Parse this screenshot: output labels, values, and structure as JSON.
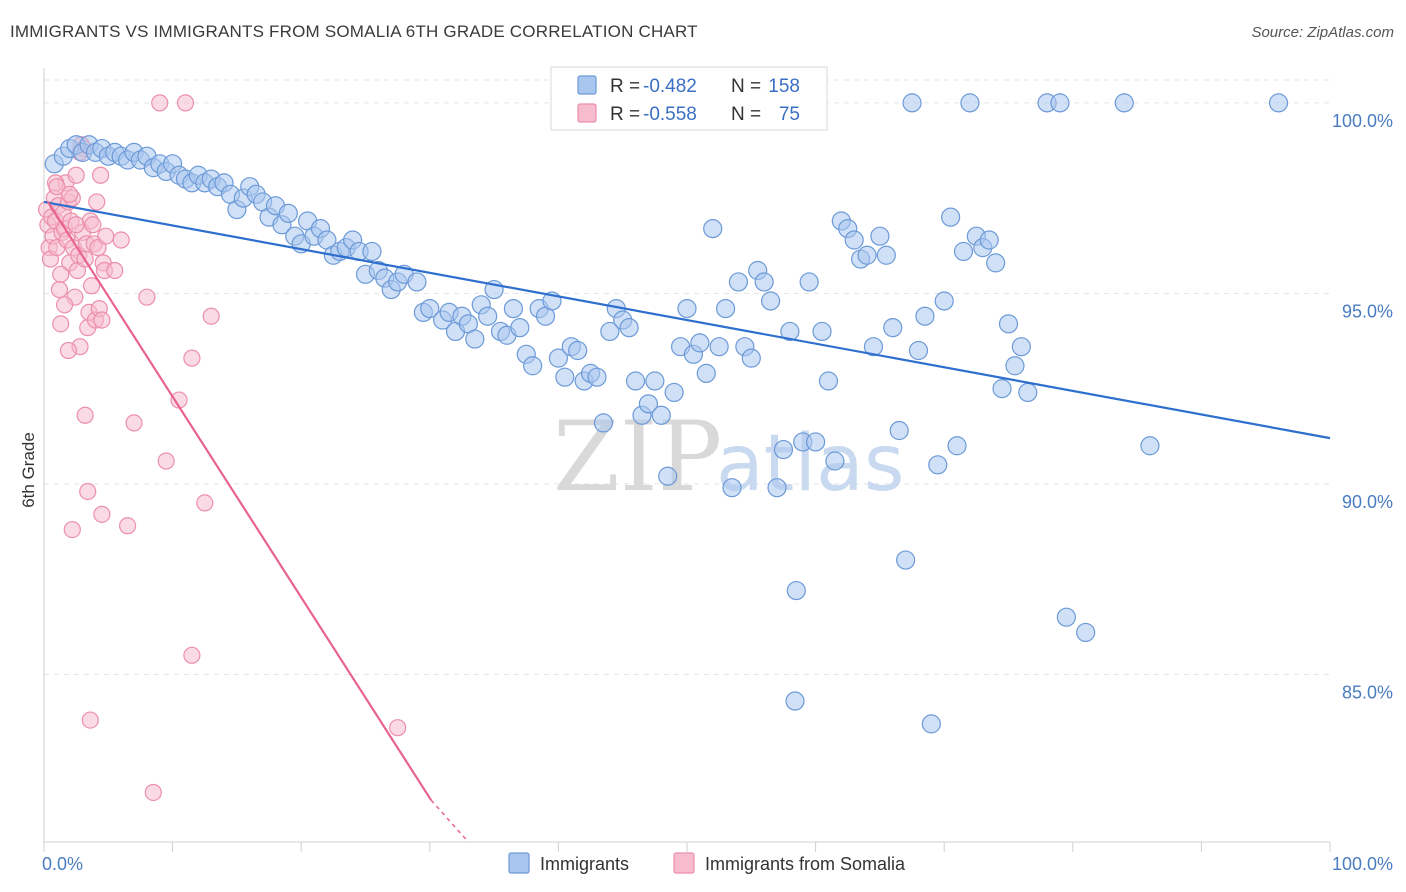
{
  "header": {
    "title": "IMMIGRANTS VS IMMIGRANTS FROM SOMALIA 6TH GRADE CORRELATION CHART",
    "source": "Source: ZipAtlas.com"
  },
  "watermark": {
    "zip": "ZIP",
    "atlas": "atlas"
  },
  "colors": {
    "blue_fill": "#a9c6ee",
    "blue_stroke": "#6c9ad8",
    "blue_line": "#2e6fce",
    "pink_fill": "#f6bccd",
    "pink_stroke": "#ec8faa",
    "pink_line": "#e8638f",
    "grid": "#e3e3e3",
    "tick_label": "#4a7cc0"
  },
  "legend": {
    "rows": [
      {
        "r_label": "R =",
        "r_value": "-0.482",
        "n_label": "N =",
        "n_value": "158"
      },
      {
        "r_label": "R =",
        "r_value": "-0.558",
        "n_label": "N =",
        "n_value": "75"
      }
    ]
  },
  "bottom_legend": [
    "Immigrants",
    "Immigrants from Somalia"
  ],
  "chart_data": {
    "type": "scatter",
    "title": "IMMIGRANTS VS IMMIGRANTS FROM SOMALIA 6TH GRADE CORRELATION CHART",
    "ylabel": "6th Grade",
    "xlabel": "",
    "xlim": [
      0,
      100
    ],
    "ylim": [
      80.6,
      100.6
    ],
    "x_tick_labels": [
      "0.0%",
      "100.0%"
    ],
    "y_ticks": [
      85,
      90,
      95,
      100
    ],
    "y_tick_labels": [
      "85.0%",
      "90.0%",
      "95.0%",
      "100.0%"
    ],
    "grid": true,
    "legend_position": "top-center",
    "series": [
      {
        "name": "Immigrants",
        "r": -0.482,
        "n": 158,
        "trend": {
          "x": [
            0,
            100
          ],
          "y": [
            97.4,
            91.2
          ]
        },
        "points": [
          [
            0.8,
            98.4
          ],
          [
            1.5,
            98.6
          ],
          [
            2.0,
            98.8
          ],
          [
            2.5,
            98.9
          ],
          [
            3.0,
            98.7
          ],
          [
            3.5,
            98.9
          ],
          [
            4.0,
            98.7
          ],
          [
            4.5,
            98.8
          ],
          [
            5.0,
            98.6
          ],
          [
            5.5,
            98.7
          ],
          [
            6.0,
            98.6
          ],
          [
            6.5,
            98.5
          ],
          [
            7.0,
            98.7
          ],
          [
            7.5,
            98.5
          ],
          [
            8.0,
            98.6
          ],
          [
            8.5,
            98.3
          ],
          [
            9.0,
            98.4
          ],
          [
            9.5,
            98.2
          ],
          [
            10.0,
            98.4
          ],
          [
            10.5,
            98.1
          ],
          [
            11.0,
            98.0
          ],
          [
            11.5,
            97.9
          ],
          [
            12.0,
            98.1
          ],
          [
            12.5,
            97.9
          ],
          [
            13.0,
            98.0
          ],
          [
            13.5,
            97.8
          ],
          [
            14.0,
            97.9
          ],
          [
            14.5,
            97.6
          ],
          [
            15.0,
            97.2
          ],
          [
            15.5,
            97.5
          ],
          [
            16.0,
            97.8
          ],
          [
            16.5,
            97.6
          ],
          [
            17.0,
            97.4
          ],
          [
            17.5,
            97.0
          ],
          [
            18.0,
            97.3
          ],
          [
            18.5,
            96.8
          ],
          [
            19.0,
            97.1
          ],
          [
            19.5,
            96.5
          ],
          [
            20.0,
            96.3
          ],
          [
            20.5,
            96.9
          ],
          [
            21.0,
            96.5
          ],
          [
            21.5,
            96.7
          ],
          [
            22.0,
            96.4
          ],
          [
            22.5,
            96.0
          ],
          [
            23.0,
            96.1
          ],
          [
            23.5,
            96.2
          ],
          [
            24.0,
            96.4
          ],
          [
            24.5,
            96.1
          ],
          [
            25.0,
            95.5
          ],
          [
            25.5,
            96.1
          ],
          [
            26.0,
            95.6
          ],
          [
            26.5,
            95.4
          ],
          [
            27.0,
            95.1
          ],
          [
            27.5,
            95.3
          ],
          [
            28.0,
            95.5
          ],
          [
            29.0,
            95.3
          ],
          [
            29.5,
            94.5
          ],
          [
            30.0,
            94.6
          ],
          [
            31.0,
            94.3
          ],
          [
            31.5,
            94.5
          ],
          [
            32.0,
            94.0
          ],
          [
            32.5,
            94.4
          ],
          [
            33.0,
            94.2
          ],
          [
            33.5,
            93.8
          ],
          [
            34.0,
            94.7
          ],
          [
            34.5,
            94.4
          ],
          [
            35.0,
            95.1
          ],
          [
            35.5,
            94.0
          ],
          [
            36.0,
            93.9
          ],
          [
            36.5,
            94.6
          ],
          [
            37.0,
            94.1
          ],
          [
            37.5,
            93.4
          ],
          [
            38.0,
            93.1
          ],
          [
            38.5,
            94.6
          ],
          [
            39.0,
            94.4
          ],
          [
            39.5,
            94.8
          ],
          [
            40.0,
            93.3
          ],
          [
            40.5,
            92.8
          ],
          [
            41.0,
            93.6
          ],
          [
            41.5,
            93.5
          ],
          [
            42.0,
            92.7
          ],
          [
            42.5,
            92.9
          ],
          [
            43.0,
            92.8
          ],
          [
            43.5,
            91.6
          ],
          [
            44.0,
            94.0
          ],
          [
            44.5,
            94.6
          ],
          [
            45.0,
            94.3
          ],
          [
            45.5,
            94.1
          ],
          [
            46.0,
            92.7
          ],
          [
            46.5,
            91.8
          ],
          [
            47.0,
            92.1
          ],
          [
            47.5,
            92.7
          ],
          [
            48.0,
            91.8
          ],
          [
            48.5,
            90.2
          ],
          [
            49.0,
            92.4
          ],
          [
            49.5,
            93.6
          ],
          [
            50.0,
            94.6
          ],
          [
            50.5,
            93.4
          ],
          [
            51.0,
            93.7
          ],
          [
            51.5,
            92.9
          ],
          [
            52.0,
            96.7
          ],
          [
            52.5,
            93.6
          ],
          [
            53.0,
            94.6
          ],
          [
            53.5,
            89.9
          ],
          [
            54.0,
            95.3
          ],
          [
            54.5,
            93.6
          ],
          [
            55.0,
            93.3
          ],
          [
            55.5,
            95.6
          ],
          [
            56.0,
            95.3
          ],
          [
            56.5,
            94.8
          ],
          [
            57.0,
            89.9
          ],
          [
            57.5,
            90.9
          ],
          [
            58.0,
            94.0
          ],
          [
            58.5,
            87.2
          ],
          [
            59.0,
            91.1
          ],
          [
            59.5,
            95.3
          ],
          [
            60.0,
            91.1
          ],
          [
            60.5,
            94.0
          ],
          [
            61.0,
            92.7
          ],
          [
            61.5,
            90.6
          ],
          [
            62.0,
            96.9
          ],
          [
            62.5,
            96.7
          ],
          [
            63.0,
            96.4
          ],
          [
            63.5,
            95.9
          ],
          [
            64.0,
            96.0
          ],
          [
            64.5,
            93.6
          ],
          [
            65.0,
            96.5
          ],
          [
            65.5,
            96.0
          ],
          [
            66.0,
            94.1
          ],
          [
            66.5,
            91.4
          ],
          [
            67.0,
            88.0
          ],
          [
            67.5,
            100.0
          ],
          [
            68.0,
            93.5
          ],
          [
            68.5,
            94.4
          ],
          [
            69.0,
            83.7
          ],
          [
            69.5,
            90.5
          ],
          [
            70.0,
            94.8
          ],
          [
            70.5,
            97.0
          ],
          [
            71.0,
            91.0
          ],
          [
            71.5,
            96.1
          ],
          [
            72.0,
            100.0
          ],
          [
            72.5,
            96.5
          ],
          [
            73.0,
            96.2
          ],
          [
            73.5,
            96.4
          ],
          [
            74.0,
            95.8
          ],
          [
            74.5,
            92.5
          ],
          [
            75.0,
            94.2
          ],
          [
            75.5,
            93.1
          ],
          [
            76.0,
            93.6
          ],
          [
            76.5,
            92.4
          ],
          [
            78.0,
            100.0
          ],
          [
            79.0,
            100.0
          ],
          [
            79.5,
            86.5
          ],
          [
            81.0,
            86.1
          ],
          [
            84.0,
            100.0
          ],
          [
            86.0,
            91.0
          ],
          [
            96.0,
            100.0
          ],
          [
            58.4,
            84.3
          ]
        ]
      },
      {
        "name": "Immigrants from Somalia",
        "r": -0.558,
        "n": 75,
        "trend": {
          "x": [
            0.3,
            30.1
          ],
          "y": [
            97.4,
            81.7
          ]
        },
        "trend_dashed": {
          "x": [
            30.1,
            33.0
          ],
          "y": [
            81.7,
            80.6
          ]
        },
        "points": [
          [
            0.2,
            97.2
          ],
          [
            0.3,
            96.8
          ],
          [
            0.4,
            96.2
          ],
          [
            0.5,
            95.9
          ],
          [
            0.6,
            97.0
          ],
          [
            0.7,
            96.5
          ],
          [
            0.8,
            97.5
          ],
          [
            0.9,
            96.9
          ],
          [
            1.0,
            96.2
          ],
          [
            1.1,
            97.3
          ],
          [
            1.2,
            95.1
          ],
          [
            1.3,
            94.2
          ],
          [
            1.4,
            96.6
          ],
          [
            1.5,
            97.1
          ],
          [
            1.6,
            96.7
          ],
          [
            1.7,
            97.9
          ],
          [
            1.8,
            96.4
          ],
          [
            1.9,
            97.4
          ],
          [
            2.0,
            95.8
          ],
          [
            2.1,
            96.9
          ],
          [
            2.2,
            97.5
          ],
          [
            2.3,
            96.2
          ],
          [
            2.4,
            94.9
          ],
          [
            2.5,
            98.1
          ],
          [
            2.6,
            95.6
          ],
          [
            2.7,
            96.0
          ],
          [
            2.8,
            93.6
          ],
          [
            2.9,
            98.9
          ],
          [
            3.0,
            96.6
          ],
          [
            3.1,
            98.8
          ],
          [
            3.2,
            95.9
          ],
          [
            3.3,
            96.3
          ],
          [
            3.4,
            94.1
          ],
          [
            3.5,
            94.5
          ],
          [
            3.6,
            96.9
          ],
          [
            3.7,
            95.2
          ],
          [
            3.8,
            96.8
          ],
          [
            3.9,
            96.3
          ],
          [
            4.0,
            94.3
          ],
          [
            4.1,
            97.4
          ],
          [
            4.2,
            96.2
          ],
          [
            4.3,
            94.6
          ],
          [
            4.4,
            98.1
          ],
          [
            4.5,
            94.3
          ],
          [
            4.6,
            95.8
          ],
          [
            4.7,
            95.6
          ],
          [
            4.8,
            96.5
          ],
          [
            0.9,
            97.9
          ],
          [
            1.3,
            95.5
          ],
          [
            1.6,
            94.7
          ],
          [
            1.9,
            93.5
          ],
          [
            2.2,
            88.8
          ],
          [
            2.5,
            96.8
          ],
          [
            2.8,
            98.7
          ],
          [
            3.2,
            91.8
          ],
          [
            3.4,
            89.8
          ],
          [
            3.6,
            83.8
          ],
          [
            4.5,
            89.2
          ],
          [
            5.5,
            95.6
          ],
          [
            6.0,
            96.4
          ],
          [
            6.5,
            88.9
          ],
          [
            7.0,
            91.6
          ],
          [
            8.0,
            94.9
          ],
          [
            8.5,
            81.9
          ],
          [
            9.0,
            100.0
          ],
          [
            9.5,
            90.6
          ],
          [
            10.5,
            92.2
          ],
          [
            11.0,
            100.0
          ],
          [
            11.5,
            93.3
          ],
          [
            11.5,
            85.5
          ],
          [
            12.5,
            89.5
          ],
          [
            13.0,
            94.4
          ],
          [
            27.5,
            83.6
          ],
          [
            1.0,
            97.8
          ],
          [
            2.0,
            97.6
          ]
        ]
      }
    ]
  }
}
